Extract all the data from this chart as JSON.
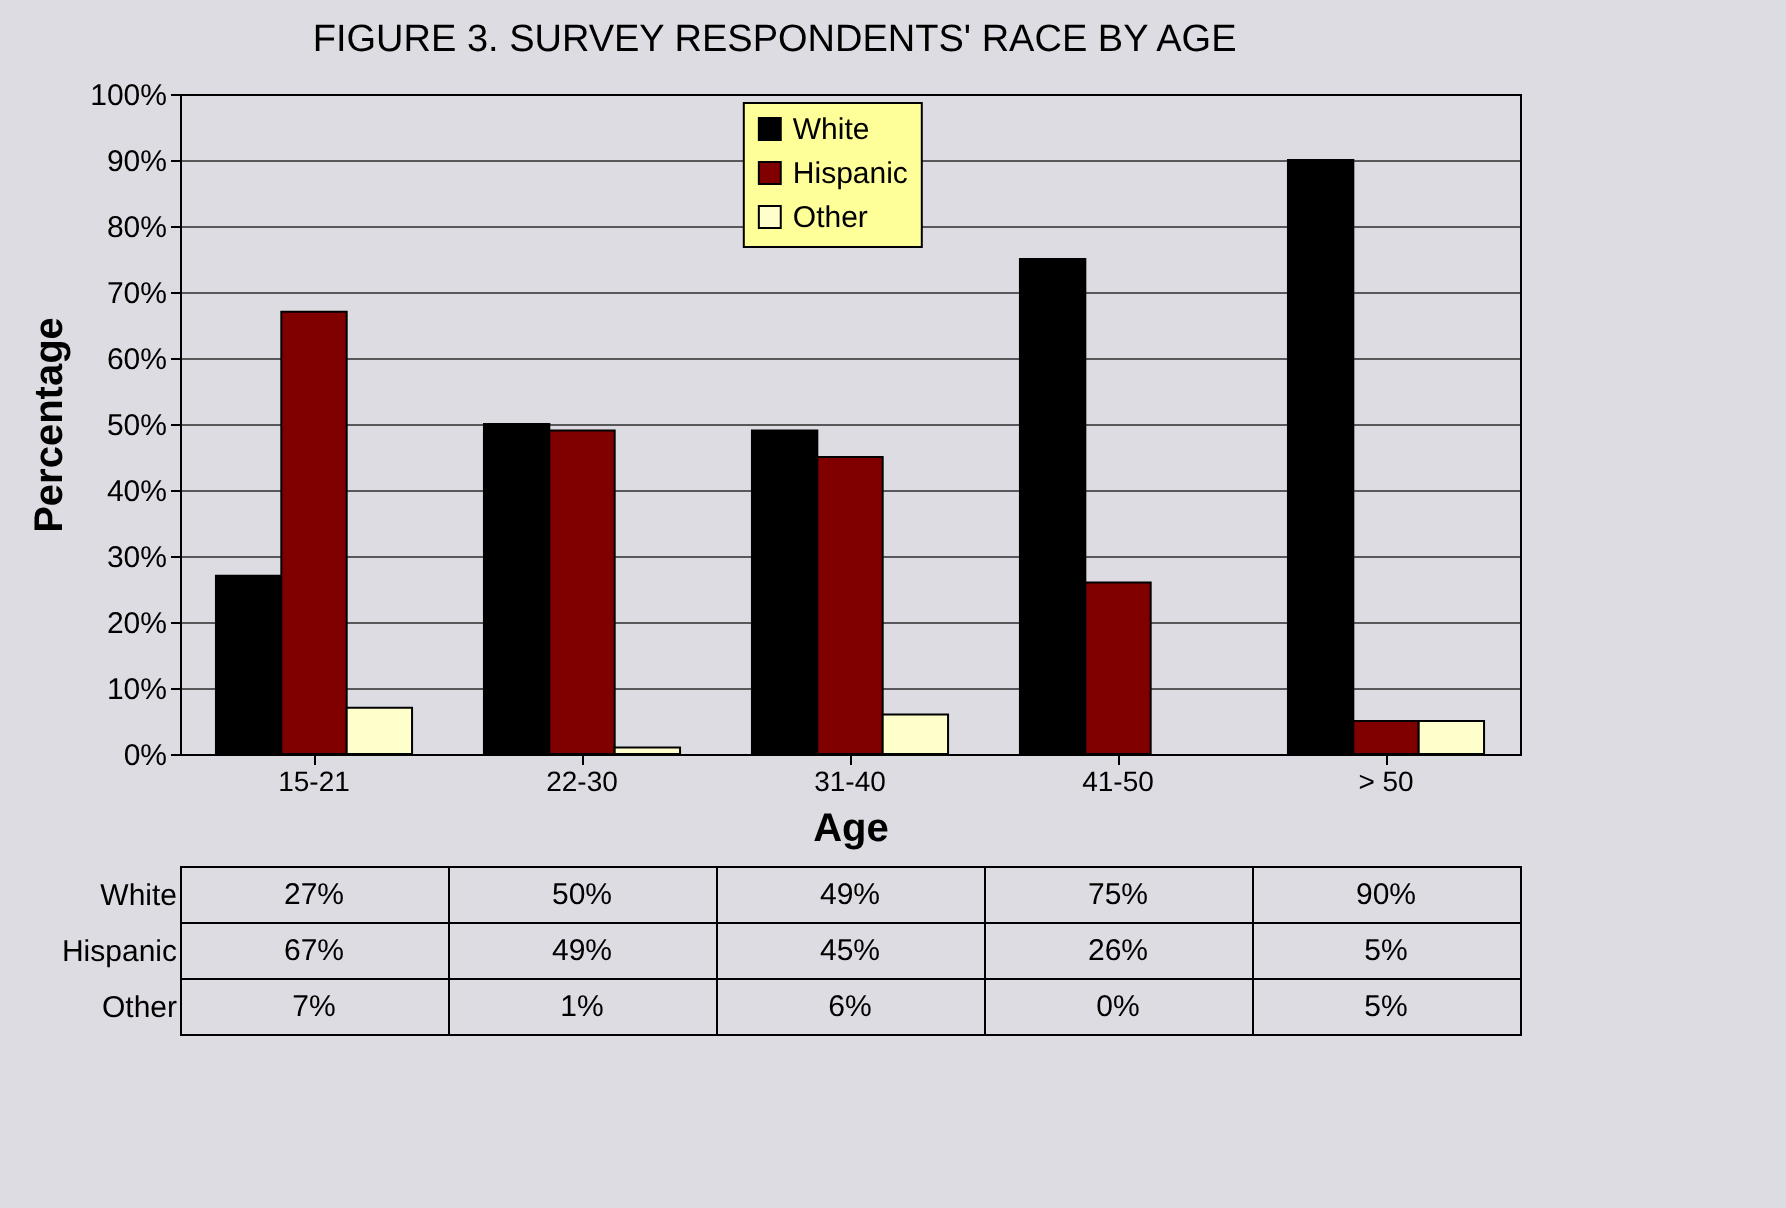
{
  "chart_data": {
    "type": "bar",
    "title": "FIGURE 3.  SURVEY RESPONDENTS' RACE BY AGE",
    "xlabel": "Age",
    "ylabel": "Percentage",
    "categories": [
      "15-21",
      "22-30",
      "31-40",
      "41-50",
      "> 50"
    ],
    "series": [
      {
        "name": "White",
        "color": "#000000",
        "values": [
          27,
          50,
          49,
          75,
          90
        ],
        "value_labels": [
          "27%",
          "50%",
          "49%",
          "75%",
          "90%"
        ]
      },
      {
        "name": "Hispanic",
        "color": "#800000",
        "values": [
          67,
          49,
          45,
          26,
          5
        ],
        "value_labels": [
          "67%",
          "49%",
          "45%",
          "26%",
          "5%"
        ]
      },
      {
        "name": "Other",
        "color": "#ffffcc",
        "values": [
          7,
          1,
          6,
          0,
          5
        ],
        "value_labels": [
          "7%",
          "1%",
          "6%",
          "0%",
          "5%"
        ]
      }
    ],
    "ylim": [
      0,
      100
    ],
    "yticks": [
      {
        "value": 0,
        "label": "0%"
      },
      {
        "value": 10,
        "label": "10%"
      },
      {
        "value": 20,
        "label": "20%"
      },
      {
        "value": 30,
        "label": "30%"
      },
      {
        "value": 40,
        "label": "40%"
      },
      {
        "value": 50,
        "label": "50%"
      },
      {
        "value": 60,
        "label": "60%"
      },
      {
        "value": 70,
        "label": "70%"
      },
      {
        "value": 80,
        "label": "80%"
      },
      {
        "value": 90,
        "label": "90%"
      },
      {
        "value": 100,
        "label": "100%"
      }
    ],
    "grid": "y",
    "legend": "top"
  }
}
